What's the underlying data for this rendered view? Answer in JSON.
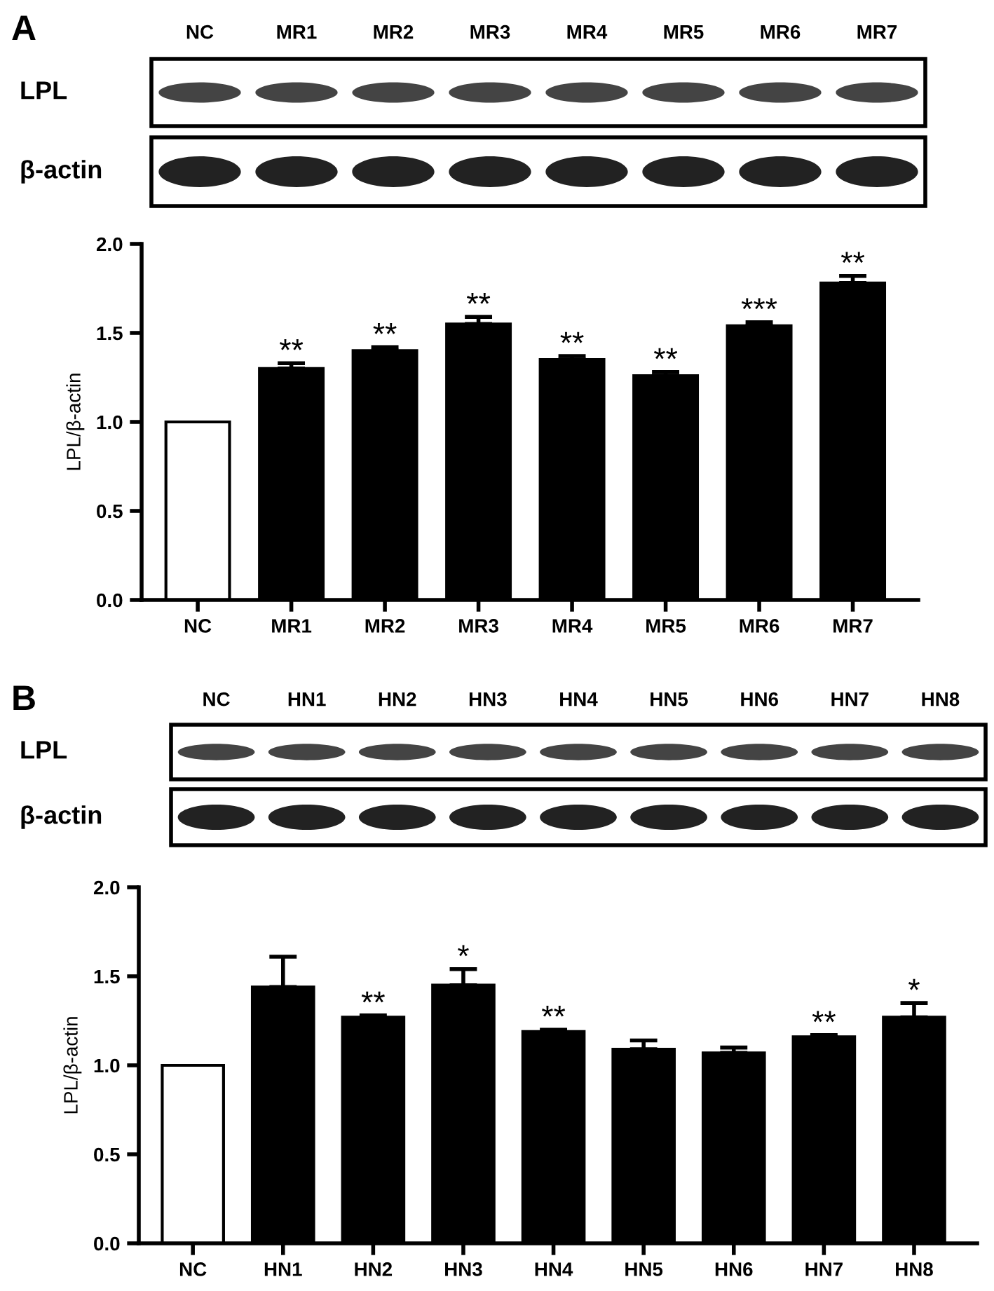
{
  "chart_data": [
    {
      "type": "bar",
      "title": "A",
      "ylabel": "LPL/β-actin",
      "categories": [
        "NC",
        "MR1",
        "MR2",
        "MR3",
        "MR4",
        "MR5",
        "MR6",
        "MR7"
      ],
      "values": [
        1.0,
        1.3,
        1.4,
        1.55,
        1.35,
        1.26,
        1.54,
        1.78
      ],
      "errors": [
        null,
        0.03,
        0.02,
        0.04,
        0.02,
        0.02,
        0.02,
        0.04
      ],
      "colors": [
        "#ffffff",
        "#000000",
        "#000000",
        "#000000",
        "#000000",
        "#000000",
        "#000000",
        "#000000"
      ],
      "ylim": [
        0,
        2
      ],
      "yticks": [
        {
          "value": 0,
          "label": "0.0"
        },
        {
          "value": 0.5,
          "label": "0.5"
        },
        {
          "value": 1,
          "label": "1.0"
        },
        {
          "value": 1.5,
          "label": "1.5"
        },
        {
          "value": 2,
          "label": "2.0"
        }
      ],
      "grid": false,
      "annotations": [
        "LPL",
        "β-actin",
        {
          "text": "**",
          "x": "MR1",
          "y": 1.33
        },
        {
          "text": "**",
          "x": "MR2",
          "y": 1.42
        },
        {
          "text": "**",
          "x": "MR3",
          "y": 1.59
        },
        {
          "text": "**",
          "x": "MR4",
          "y": 1.37
        },
        {
          "text": "**",
          "x": "MR5",
          "y": 1.28
        },
        {
          "text": "***",
          "x": "MR6",
          "y": 1.56
        },
        {
          "text": "**",
          "x": "MR7",
          "y": 1.82
        }
      ]
    },
    {
      "type": "bar",
      "title": "B",
      "ylabel": "LPL/β-actin",
      "categories": [
        "NC",
        "HN1",
        "HN2",
        "HN3",
        "HN4",
        "HN5",
        "HN6",
        "HN7",
        "HN8"
      ],
      "values": [
        1.0,
        1.44,
        1.27,
        1.45,
        1.19,
        1.09,
        1.07,
        1.16,
        1.27
      ],
      "errors": [
        null,
        0.17,
        0.01,
        0.09,
        0.01,
        0.05,
        0.03,
        0.01,
        0.08
      ],
      "colors": [
        "#ffffff",
        "#000000",
        "#000000",
        "#000000",
        "#000000",
        "#000000",
        "#000000",
        "#000000",
        "#000000"
      ],
      "ylim": [
        0,
        2
      ],
      "yticks": [
        {
          "value": 0,
          "label": "0.0"
        },
        {
          "value": 0.5,
          "label": "0.5"
        },
        {
          "value": 1,
          "label": "1.0"
        },
        {
          "value": 1.5,
          "label": "1.5"
        },
        {
          "value": 2,
          "label": "2.0"
        }
      ],
      "grid": false,
      "annotations": [
        "LPL",
        "β-actin",
        {
          "text": "**",
          "x": "HN2",
          "y": 1.28
        },
        {
          "text": "*",
          "x": "HN3",
          "y": 1.54
        },
        {
          "text": "**",
          "x": "HN4",
          "y": 1.2
        },
        {
          "text": "**",
          "x": "HN7",
          "y": 1.17
        },
        {
          "text": "*",
          "x": "HN8",
          "y": 1.35
        }
      ]
    }
  ]
}
